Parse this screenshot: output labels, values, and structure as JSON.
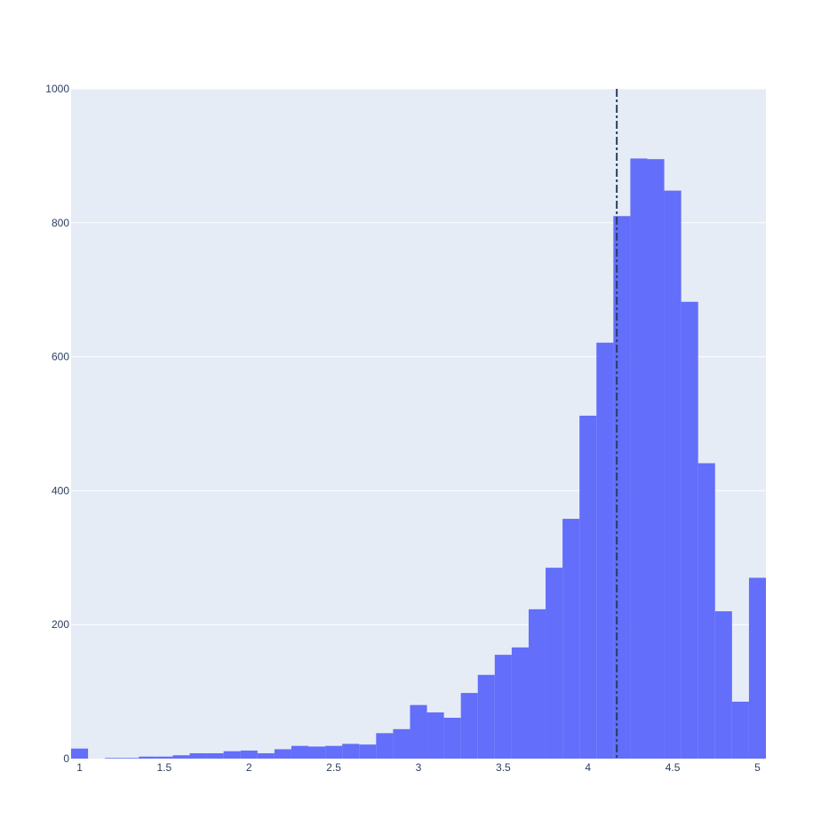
{
  "chart_data": {
    "type": "bar",
    "subtype": "histogram",
    "title": "",
    "xlabel": "",
    "ylabel": "",
    "xlim": [
      0.95,
      5.05
    ],
    "ylim": [
      0,
      1000
    ],
    "bin_width": 0.1,
    "bin_centers": [
      1.0,
      1.1,
      1.2,
      1.3,
      1.4,
      1.5,
      1.6,
      1.7,
      1.8,
      1.9,
      2.0,
      2.1,
      2.2,
      2.3,
      2.4,
      2.5,
      2.6,
      2.7,
      2.8,
      2.9,
      3.0,
      3.1,
      3.2,
      3.3,
      3.4,
      3.5,
      3.6,
      3.7,
      3.8,
      3.9,
      4.0,
      4.1,
      4.2,
      4.3,
      4.4,
      4.5,
      4.6,
      4.7,
      4.8,
      4.9,
      5.0
    ],
    "values": [
      15,
      0,
      1,
      1,
      3,
      3,
      5,
      8,
      8,
      11,
      12,
      8,
      14,
      19,
      18,
      19,
      22,
      21,
      38,
      44,
      80,
      69,
      61,
      98,
      125,
      155,
      166,
      223,
      285,
      358,
      512,
      621,
      810,
      896,
      895,
      848,
      682,
      441,
      220,
      85,
      270
    ],
    "y_ticks": [
      0,
      200,
      400,
      600,
      800,
      1000
    ],
    "x_ticks": [
      1,
      1.5,
      2,
      2.5,
      3,
      3.5,
      4,
      4.5,
      5
    ],
    "x_tick_labels": [
      "1",
      "1.5",
      "2",
      "2.5",
      "3",
      "3.5",
      "4",
      "4.5",
      "5"
    ],
    "y_tick_labels": [
      "0",
      "200",
      "400",
      "600",
      "800",
      "1000"
    ],
    "reference_line": {
      "x": 4.17,
      "style": "dashdot",
      "color": "#2a3f5f"
    },
    "bar_color": "#636efa",
    "plot_background": "#e5ecf6",
    "gridline_color": "#ffffff",
    "grid": true,
    "legend": "none"
  }
}
